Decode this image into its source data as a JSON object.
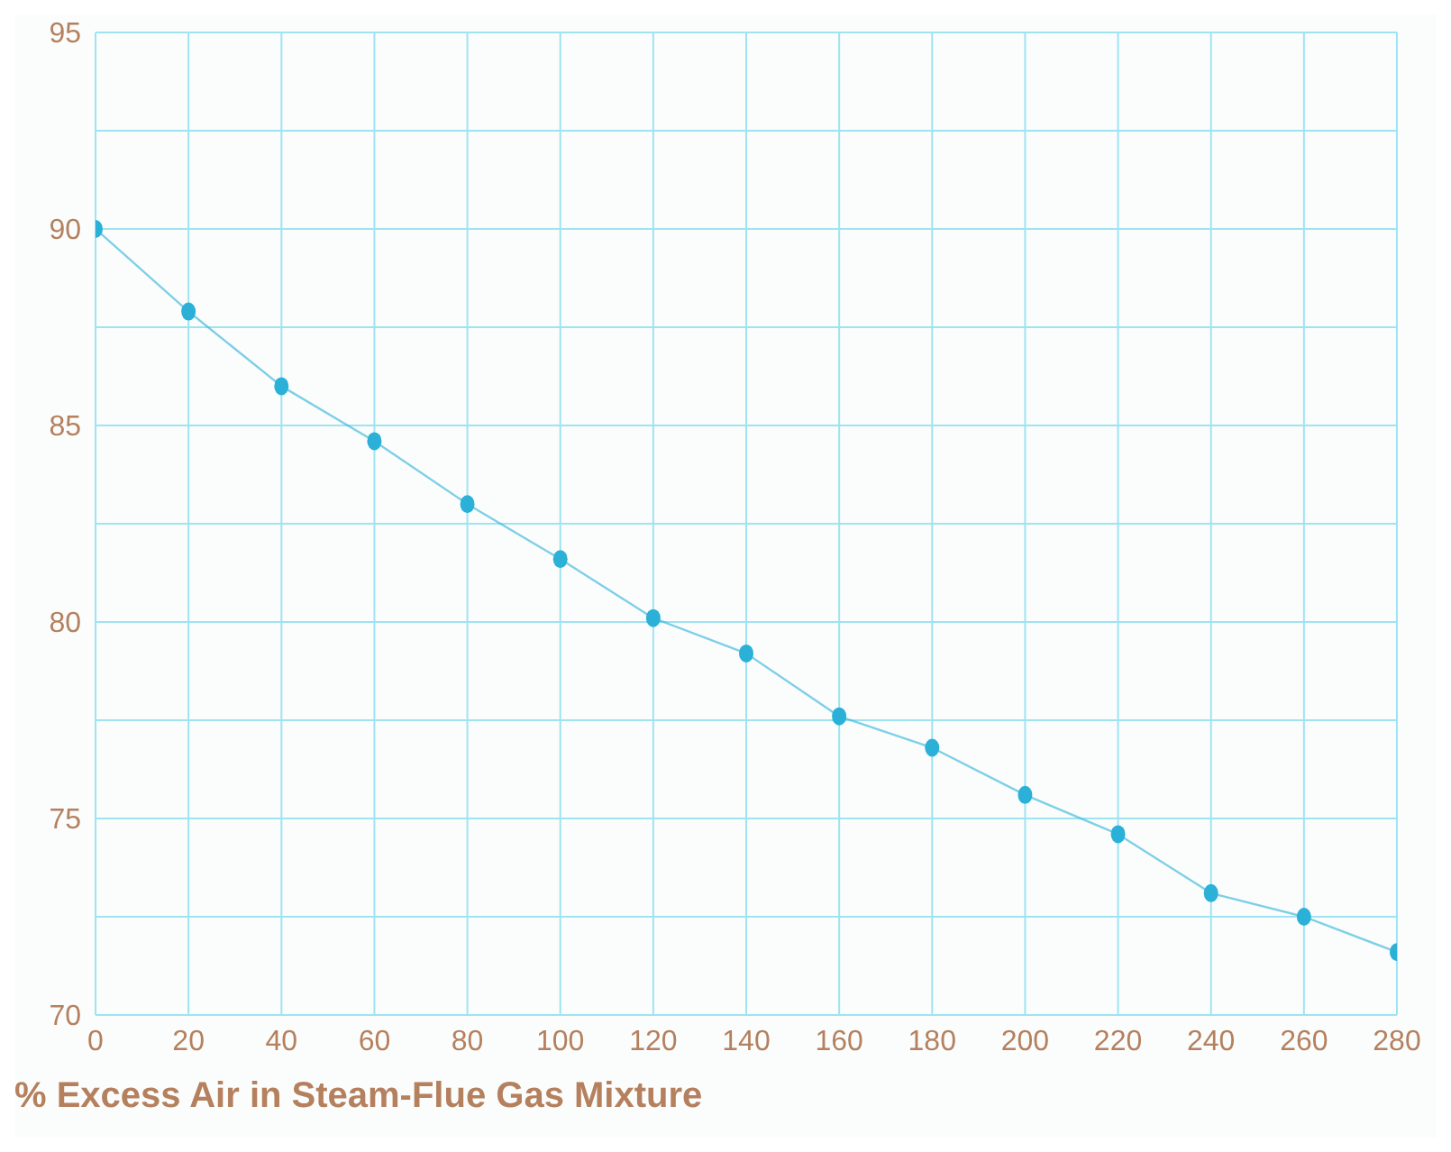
{
  "chart_data": {
    "type": "line",
    "xlabel": "% Excess Air in Steam-Flue Gas Mixture",
    "x": [
      0,
      20,
      40,
      60,
      80,
      100,
      120,
      140,
      160,
      180,
      200,
      220,
      240,
      260,
      280
    ],
    "series": [
      {
        "color": "#2bb0d8",
        "values": [
          90.0,
          87.9,
          86.0,
          84.6,
          83.0,
          81.6,
          80.1,
          79.2,
          77.6,
          76.8,
          75.6,
          74.6,
          73.1,
          72.5,
          71.6
        ]
      }
    ],
    "xlim": [
      0,
      280
    ],
    "xticks": [
      0,
      20,
      40,
      60,
      80,
      100,
      120,
      140,
      160,
      180,
      200,
      220,
      240,
      260,
      280
    ],
    "ylim": [
      70,
      95
    ],
    "yticks": [
      70,
      {
        "value": 72.5,
        "label": null
      },
      75,
      {
        "value": 77.5,
        "label": null
      },
      80,
      {
        "value": 82.5,
        "label": null
      },
      85,
      {
        "value": 87.5,
        "label": null
      },
      90,
      {
        "value": 92.5,
        "label": null
      },
      95
    ],
    "grid": true,
    "marker": "circle",
    "line_style": "solid",
    "legend": false
  }
}
